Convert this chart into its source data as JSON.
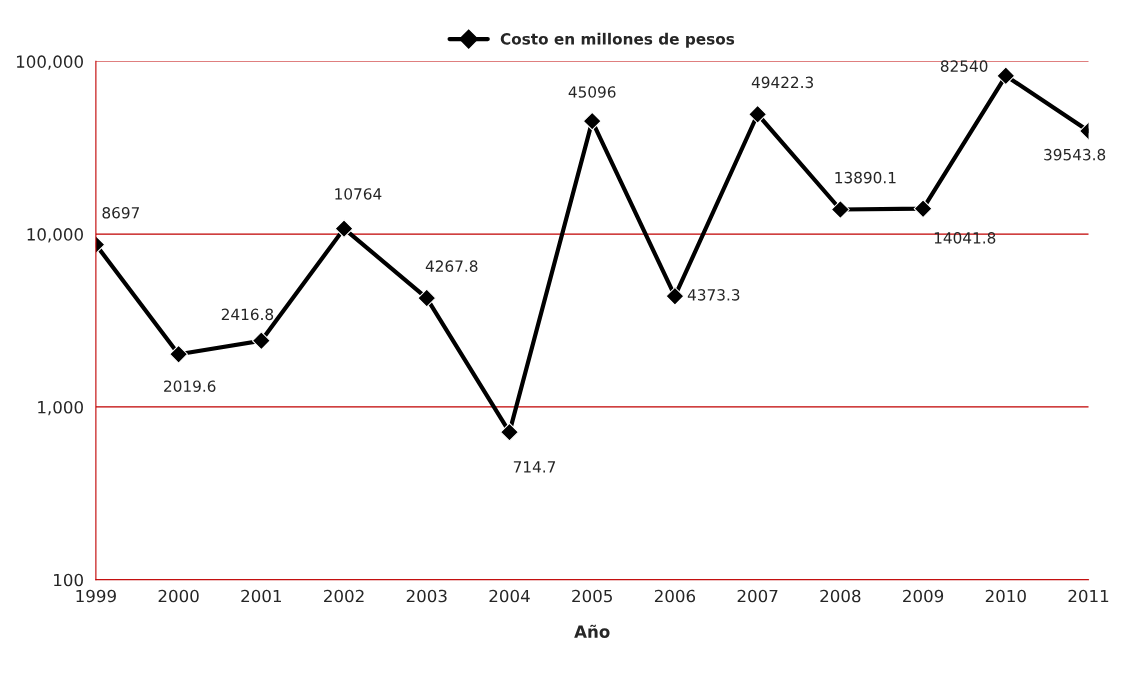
{
  "chart_data": {
    "type": "line",
    "xlabel": "Año",
    "categories": [
      "1999",
      "2000",
      "2001",
      "2002",
      "2003",
      "2004",
      "2005",
      "2006",
      "2007",
      "2008",
      "2009",
      "2010",
      "2011"
    ],
    "series": [
      {
        "name": "Costo en millones de pesos",
        "color": "#000000",
        "values": [
          8697,
          2019.6,
          2416.8,
          10764,
          4267.8,
          714.7,
          45096,
          4373.3,
          49422.3,
          13890.1,
          14041.8,
          82540,
          39543.8
        ]
      }
    ],
    "log": "y",
    "ylim": [
      100,
      100000
    ],
    "yticks": [
      100,
      {
        "value": 1000,
        "label": "1,000"
      },
      {
        "value": 10000,
        "label": "10,000"
      },
      {
        "value": 100000,
        "label": "100,000"
      }
    ],
    "grid": "y",
    "legend": "top",
    "marker": "diamond",
    "line_style": "solid",
    "data_labels": true
  }
}
